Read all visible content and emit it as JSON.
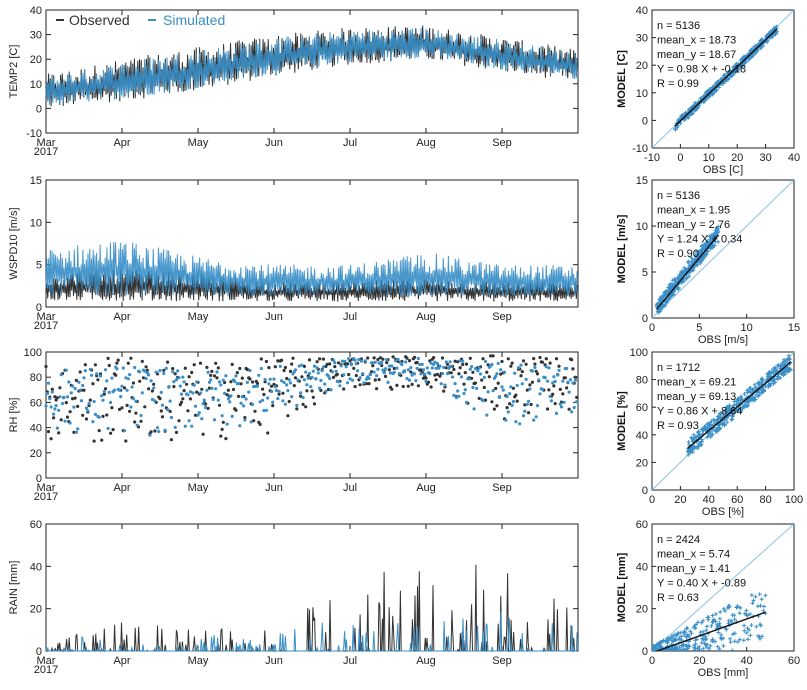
{
  "legend": {
    "observed_label": "Observed",
    "simulated_label": "Simulated",
    "observed_color": "#333333",
    "simulated_color": "#3a8fc8"
  },
  "chart_data": [
    {
      "type": "line",
      "panel": "timeseries",
      "ylabel": "TEMP2 [C]",
      "ylim": [
        -10,
        40
      ],
      "yticks": [
        -10,
        0,
        10,
        20,
        30,
        40
      ],
      "xlabel_year": "2017",
      "x_ticks": [
        "Mar",
        "Apr",
        "May",
        "Jun",
        "Jul",
        "Aug",
        "Sep"
      ],
      "series": [
        {
          "name": "Observed",
          "x": [
            "Mar",
            "Apr",
            "May",
            "Jun",
            "Jul",
            "Aug",
            "Sep",
            "end"
          ],
          "y_min": [
            -1,
            2,
            6,
            12,
            17,
            19,
            14,
            10
          ],
          "y_max": [
            14,
            20,
            25,
            30,
            33,
            34,
            29,
            24
          ]
        },
        {
          "name": "Simulated",
          "x": [
            "Mar",
            "Apr",
            "May",
            "Jun",
            "Jul",
            "Aug",
            "Sep",
            "end"
          ],
          "y_min": [
            0,
            3,
            7,
            13,
            18,
            20,
            15,
            11
          ],
          "y_max": [
            13,
            19,
            24,
            29,
            32,
            33,
            28,
            23
          ]
        }
      ]
    },
    {
      "type": "scatter",
      "panel": "scatter",
      "xlabel": "OBS [C]",
      "ylabel": "MODEL [C]",
      "xlim": [
        -10,
        40
      ],
      "ylim": [
        -10,
        40
      ],
      "xticks": [
        -10,
        0,
        10,
        20,
        30,
        40
      ],
      "yticks": [
        -10,
        0,
        10,
        20,
        30,
        40
      ],
      "stats": [
        "n = 5136",
        "mean_x = 18.73",
        "mean_y = 18.67",
        "Y = 0.98 X + -0.18",
        "R = 0.99"
      ],
      "slope": 0.98,
      "intercept": -0.18,
      "x_range": [
        -2,
        34
      ],
      "spread": 1.5
    },
    {
      "type": "line",
      "panel": "timeseries",
      "ylabel": "WSPD10 [m/s]",
      "ylim": [
        0,
        15
      ],
      "yticks": [
        0,
        5,
        10,
        15
      ],
      "xlabel_year": "2017",
      "x_ticks": [
        "Mar",
        "Apr",
        "May",
        "Jun",
        "Jul",
        "Aug",
        "Sep"
      ],
      "series": [
        {
          "name": "Observed",
          "x": [
            "Mar",
            "Apr",
            "May",
            "Jun",
            "Jul",
            "Aug",
            "Sep",
            "end"
          ],
          "y_min": [
            0.5,
            0.5,
            0.5,
            0.5,
            0.5,
            0.5,
            0.5,
            0.5
          ],
          "y_max": [
            4,
            4.5,
            4,
            3,
            3,
            3.5,
            3,
            3
          ]
        },
        {
          "name": "Simulated",
          "x": [
            "Mar",
            "Apr",
            "May",
            "Jun",
            "Jul",
            "Aug",
            "Sep",
            "end"
          ],
          "y_min": [
            1,
            1,
            1,
            1,
            1,
            1,
            1,
            1
          ],
          "y_max": [
            7,
            8,
            6,
            5,
            5,
            6.5,
            5,
            5
          ]
        }
      ]
    },
    {
      "type": "scatter",
      "panel": "scatter",
      "xlabel": "OBS [m/s]",
      "ylabel": "MODEL [m/s]",
      "xlim": [
        0,
        15
      ],
      "ylim": [
        0,
        15
      ],
      "xticks": [
        0,
        5,
        10,
        15
      ],
      "yticks": [
        0,
        5,
        10,
        15
      ],
      "stats": [
        "n = 5136",
        "mean_x = 1.95",
        "mean_y = 2.76",
        "Y = 1.24 X + 0.34",
        "R = 0.90"
      ],
      "slope": 1.24,
      "intercept": 0.34,
      "x_range": [
        0.5,
        7
      ],
      "spread": 0.6
    },
    {
      "type": "scatter",
      "panel": "timeseries",
      "ylabel": "RH [%]",
      "ylim": [
        0,
        100
      ],
      "yticks": [
        0,
        20,
        40,
        60,
        80,
        100
      ],
      "xlabel_year": "2017",
      "x_ticks": [
        "Mar",
        "Apr",
        "May",
        "Jun",
        "Jul",
        "Aug",
        "Sep"
      ],
      "series": [
        {
          "name": "Observed",
          "x": [
            "Mar",
            "Apr",
            "May",
            "Jun",
            "Jul",
            "Aug",
            "Sep",
            "end"
          ],
          "y_min": [
            25,
            22,
            25,
            35,
            70,
            70,
            45,
            55
          ],
          "y_max": [
            90,
            97,
            92,
            95,
            97,
            97,
            97,
            95
          ]
        },
        {
          "name": "Simulated",
          "x": [
            "Mar",
            "Apr",
            "May",
            "Jun",
            "Jul",
            "Aug",
            "Sep",
            "end"
          ],
          "y_min": [
            35,
            30,
            35,
            45,
            75,
            75,
            40,
            45
          ],
          "y_max": [
            85,
            90,
            85,
            88,
            95,
            95,
            92,
            90
          ]
        }
      ]
    },
    {
      "type": "scatter",
      "panel": "scatter",
      "xlabel": "OBS [%]",
      "ylabel": "MODEL [%]",
      "xlim": [
        0,
        100
      ],
      "ylim": [
        0,
        100
      ],
      "xticks": [
        0,
        20,
        40,
        60,
        80,
        100
      ],
      "yticks": [
        0,
        20,
        40,
        60,
        80,
        100
      ],
      "stats": [
        "n = 1712",
        "mean_x = 69.21",
        "mean_y = 69.13",
        "Y = 0.86 X + 8.64",
        "R = 0.93"
      ],
      "slope": 0.86,
      "intercept": 8.64,
      "x_range": [
        25,
        98
      ],
      "spread": 6
    },
    {
      "type": "line",
      "panel": "timeseries",
      "ylabel": "RAIN [mm]",
      "ylim": [
        0,
        60
      ],
      "yticks": [
        0,
        20,
        40,
        60
      ],
      "xlabel_year": "2017",
      "x_ticks": [
        "Mar",
        "Apr",
        "May",
        "Jun",
        "Jul",
        "Aug",
        "Sep"
      ],
      "series": [
        {
          "name": "Observed",
          "x": [
            "Mar",
            "Apr",
            "May",
            "Jun",
            "Jul",
            "Aug",
            "Sep",
            "end"
          ],
          "y_min": [
            0,
            0,
            0,
            0,
            0,
            0,
            0,
            0
          ],
          "y_max": [
            3,
            15,
            10,
            12,
            37,
            40,
            50,
            18
          ]
        },
        {
          "name": "Simulated",
          "x": [
            "Mar",
            "Apr",
            "May",
            "Jun",
            "Jul",
            "Aug",
            "Sep",
            "end"
          ],
          "y_min": [
            0,
            0,
            0,
            0,
            0,
            0,
            0,
            0
          ],
          "y_max": [
            2,
            13,
            8,
            8,
            18,
            16,
            20,
            12
          ]
        }
      ]
    },
    {
      "type": "scatter",
      "panel": "scatter",
      "xlabel": "OBS [mm]",
      "ylabel": "MODEL [mm]",
      "xlim": [
        0,
        60
      ],
      "ylim": [
        0,
        60
      ],
      "xticks": [
        0,
        20,
        40,
        60
      ],
      "yticks": [
        0,
        20,
        40,
        60
      ],
      "stats": [
        "n = 2424",
        "mean_x = 5.74",
        "mean_y = 1.41",
        "Y = 0.40 X + -0.89",
        "R = 0.63"
      ],
      "slope": 0.4,
      "intercept": -0.89,
      "x_range": [
        0,
        48
      ],
      "spread": 3
    }
  ]
}
